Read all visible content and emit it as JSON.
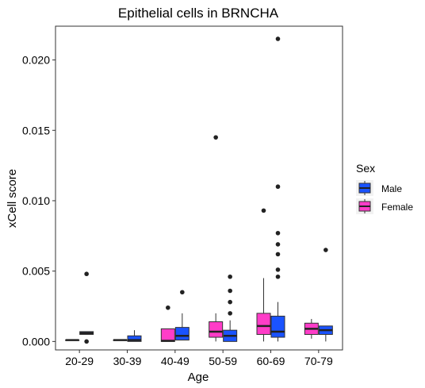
{
  "chart_data": {
    "type": "box",
    "title": "Epithelial cells in BRNCHA",
    "xlabel": "Age",
    "ylabel": "xCell score",
    "categories": [
      "20-29",
      "30-39",
      "40-49",
      "50-59",
      "60-69",
      "70-79"
    ],
    "ylim": [
      -0.0006,
      0.0224
    ],
    "yticks": [
      0.0,
      0.005,
      0.01,
      0.015,
      0.02
    ],
    "ytick_labels": [
      "0.000",
      "0.005",
      "0.010",
      "0.015",
      "0.020"
    ],
    "legend": {
      "title": "Sex",
      "position": "right",
      "entries": [
        {
          "name": "Male",
          "color": "#1a53ff"
        },
        {
          "name": "Female",
          "color": "#ff3dc8"
        }
      ]
    },
    "series": [
      {
        "name": "Female",
        "color": "#ff3dc8",
        "boxes": [
          {
            "category": "20-29",
            "whislo": 0.0001,
            "q1": 0.0001,
            "med": 0.0001,
            "q3": 0.0001,
            "whishi": 0.0001,
            "outliers": []
          },
          {
            "category": "30-39",
            "whislo": 0.0001,
            "q1": 0.0001,
            "med": 0.0001,
            "q3": 0.0001,
            "whishi": 0.0001,
            "outliers": []
          },
          {
            "category": "40-49",
            "whislo": 0.0,
            "q1": 0.0,
            "med": 5e-05,
            "q3": 0.0009,
            "whishi": 0.0009,
            "outliers": [
              0.0024
            ]
          },
          {
            "category": "50-59",
            "whislo": 0.0,
            "q1": 0.0003,
            "med": 0.0007,
            "q3": 0.0014,
            "whishi": 0.002,
            "outliers": [
              0.0145
            ]
          },
          {
            "category": "60-69",
            "whislo": 0.0,
            "q1": 0.0005,
            "med": 0.0011,
            "q3": 0.002,
            "whishi": 0.0045,
            "outliers": [
              0.0093
            ]
          },
          {
            "category": "70-79",
            "whislo": 0.0002,
            "q1": 0.0005,
            "med": 0.0009,
            "q3": 0.0013,
            "whishi": 0.0016,
            "outliers": []
          }
        ]
      },
      {
        "name": "Male",
        "color": "#1a53ff",
        "boxes": [
          {
            "category": "20-29",
            "whislo": 0.0005,
            "q1": 0.0005,
            "med": 0.0006,
            "q3": 0.0007,
            "whishi": 0.0007,
            "outliers": [
              0.0048,
              0.0
            ]
          },
          {
            "category": "30-39",
            "whislo": 0.0,
            "q1": 0.0,
            "med": 0.0001,
            "q3": 0.0004,
            "whishi": 0.0008,
            "outliers": []
          },
          {
            "category": "40-49",
            "whislo": 0.0001,
            "q1": 0.0001,
            "med": 0.0004,
            "q3": 0.001,
            "whishi": 0.002,
            "outliers": [
              0.0035
            ]
          },
          {
            "category": "50-59",
            "whislo": 0.0,
            "q1": 0.0,
            "med": 0.0004,
            "q3": 0.0008,
            "whishi": 0.0015,
            "outliers": [
              0.0046,
              0.0036,
              0.0028,
              0.002
            ]
          },
          {
            "category": "60-69",
            "whislo": 0.0,
            "q1": 0.0003,
            "med": 0.0007,
            "q3": 0.0018,
            "whishi": 0.0028,
            "outliers": [
              0.0215,
              0.011,
              0.0077,
              0.0069,
              0.0062,
              0.0051,
              0.0046
            ]
          },
          {
            "category": "70-79",
            "whislo": 0.0,
            "q1": 0.0005,
            "med": 0.0008,
            "q3": 0.0011,
            "whishi": 0.0011,
            "outliers": [
              0.0065
            ]
          }
        ]
      }
    ]
  }
}
